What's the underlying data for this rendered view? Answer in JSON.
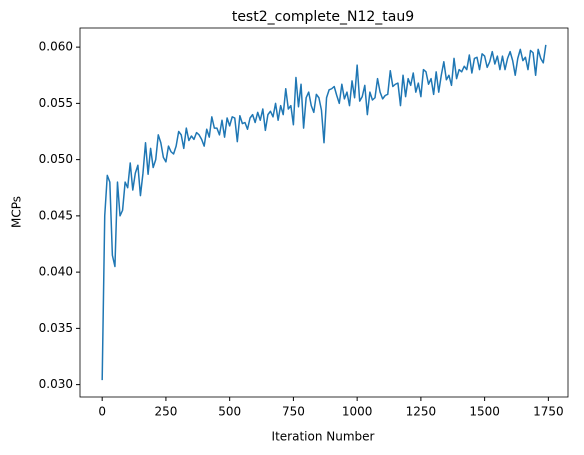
{
  "chart_data": {
    "type": "line",
    "title": "test2_complete_N12_tau9",
    "xlabel": "Iteration Number",
    "ylabel": "MCPs",
    "x": [
      0,
      10,
      20,
      30,
      40,
      50,
      60,
      70,
      80,
      90,
      100,
      110,
      120,
      130,
      140,
      150,
      160,
      170,
      180,
      190,
      200,
      210,
      220,
      230,
      240,
      250,
      260,
      270,
      280,
      290,
      300,
      310,
      320,
      330,
      340,
      350,
      360,
      370,
      380,
      390,
      400,
      410,
      420,
      430,
      440,
      450,
      460,
      470,
      480,
      490,
      500,
      510,
      520,
      530,
      540,
      550,
      560,
      570,
      580,
      590,
      600,
      610,
      620,
      630,
      640,
      650,
      660,
      670,
      680,
      690,
      700,
      710,
      720,
      730,
      740,
      750,
      760,
      770,
      780,
      790,
      800,
      810,
      820,
      830,
      840,
      850,
      860,
      870,
      880,
      890,
      900,
      910,
      920,
      930,
      940,
      950,
      960,
      970,
      980,
      990,
      1000,
      1010,
      1020,
      1030,
      1040,
      1050,
      1060,
      1070,
      1080,
      1090,
      1100,
      1110,
      1120,
      1130,
      1140,
      1150,
      1160,
      1170,
      1180,
      1190,
      1200,
      1210,
      1220,
      1230,
      1240,
      1250,
      1260,
      1270,
      1280,
      1290,
      1300,
      1310,
      1320,
      1330,
      1340,
      1350,
      1360,
      1370,
      1380,
      1390,
      1400,
      1410,
      1420,
      1430,
      1440,
      1450,
      1460,
      1470,
      1480,
      1490,
      1500,
      1510,
      1520,
      1530,
      1540,
      1550,
      1560,
      1570,
      1580,
      1590,
      1600,
      1610,
      1620,
      1630,
      1640,
      1650,
      1660,
      1670,
      1680,
      1690,
      1700,
      1710,
      1720,
      1730,
      1740
    ],
    "series": [
      {
        "name": "MCPs",
        "color": "#1f77b4",
        "values": [
          0.0304,
          0.045,
          0.0486,
          0.048,
          0.0415,
          0.0405,
          0.048,
          0.045,
          0.0455,
          0.048,
          0.0475,
          0.0497,
          0.0473,
          0.0488,
          0.0495,
          0.0468,
          0.0488,
          0.0515,
          0.0487,
          0.051,
          0.0493,
          0.05,
          0.0522,
          0.0515,
          0.0502,
          0.0498,
          0.0512,
          0.0507,
          0.0505,
          0.0512,
          0.0525,
          0.0522,
          0.051,
          0.0528,
          0.0517,
          0.0521,
          0.0518,
          0.0524,
          0.0522,
          0.0518,
          0.0512,
          0.0527,
          0.052,
          0.0538,
          0.0528,
          0.0528,
          0.0522,
          0.0535,
          0.052,
          0.0537,
          0.053,
          0.0538,
          0.0537,
          0.0516,
          0.0539,
          0.0532,
          0.0533,
          0.0527,
          0.0537,
          0.054,
          0.0533,
          0.0542,
          0.0535,
          0.0545,
          0.0526,
          0.054,
          0.0543,
          0.0538,
          0.055,
          0.0535,
          0.0548,
          0.054,
          0.0563,
          0.0545,
          0.0548,
          0.0531,
          0.0573,
          0.0547,
          0.0567,
          0.0528,
          0.0555,
          0.056,
          0.0548,
          0.0542,
          0.0558,
          0.0555,
          0.0544,
          0.0515,
          0.0555,
          0.0562,
          0.0563,
          0.0565,
          0.0557,
          0.055,
          0.0567,
          0.0554,
          0.056,
          0.0548,
          0.057,
          0.0555,
          0.0584,
          0.0552,
          0.0556,
          0.0566,
          0.054,
          0.056,
          0.0553,
          0.0555,
          0.0572,
          0.056,
          0.0554,
          0.0557,
          0.0558,
          0.0579,
          0.0565,
          0.0567,
          0.0568,
          0.0548,
          0.0575,
          0.0556,
          0.0572,
          0.0566,
          0.0577,
          0.056,
          0.0568,
          0.0556,
          0.058,
          0.0578,
          0.0567,
          0.0572,
          0.0558,
          0.0578,
          0.056,
          0.0575,
          0.0587,
          0.0571,
          0.0575,
          0.0566,
          0.059,
          0.0572,
          0.058,
          0.0578,
          0.0583,
          0.058,
          0.0593,
          0.0577,
          0.059,
          0.0591,
          0.058,
          0.0594,
          0.0592,
          0.0582,
          0.0587,
          0.0596,
          0.0585,
          0.0592,
          0.058,
          0.0592,
          0.058,
          0.059,
          0.0596,
          0.0588,
          0.0575,
          0.059,
          0.0598,
          0.0588,
          0.0591,
          0.058,
          0.0597,
          0.0595,
          0.0575,
          0.0598,
          0.059,
          0.0586,
          0.0602
        ]
      }
    ],
    "xlim": [
      -87,
      1827
    ],
    "xticks": [
      0,
      250,
      500,
      750,
      1000,
      1250,
      1500,
      1750
    ],
    "ylim": [
      0.0289,
      0.0617
    ],
    "yticks": [
      {
        "value": 0.03,
        "label": "0.030"
      },
      {
        "value": 0.035,
        "label": "0.035"
      },
      {
        "value": 0.04,
        "label": "0.040"
      },
      {
        "value": 0.045,
        "label": "0.045"
      },
      {
        "value": 0.05,
        "label": "0.050"
      },
      {
        "value": 0.055,
        "label": "0.055"
      },
      {
        "value": 0.06,
        "label": "0.060"
      }
    ],
    "grid": false
  }
}
